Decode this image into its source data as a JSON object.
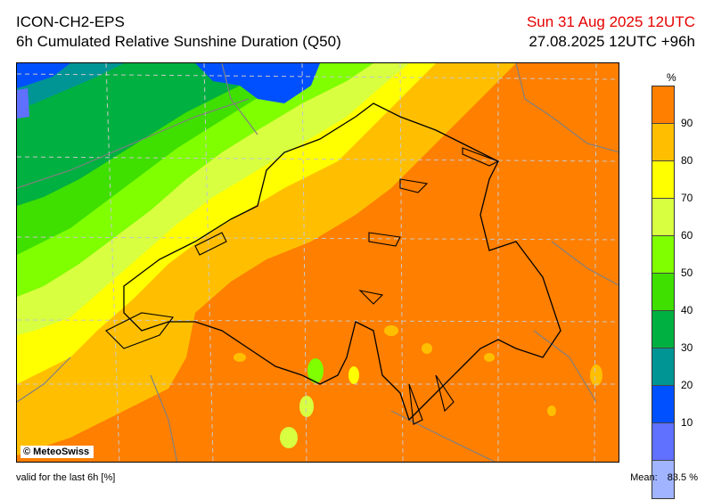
{
  "header": {
    "model": "ICON-CH2-EPS",
    "product": "6h Cumulated Relative Sunshine Duration (Q50)",
    "valid_date": "Sun 31 Aug 2025 12UTC",
    "run_info": "27.08.2025 12UTC +96h"
  },
  "map": {
    "copyright": "© MeteoSwiss",
    "region": "Switzerland",
    "colors": {
      "background_orange": "#ff7f00",
      "border_lines": "#000000",
      "grid_lines": "#c8c8c8",
      "neighbor_borders": "#808080"
    }
  },
  "legend": {
    "unit": "%",
    "classes": [
      {
        "color": "#ff7f00",
        "label": ""
      },
      {
        "color": "#ffbf00",
        "label": "90"
      },
      {
        "color": "#ffff00",
        "label": "80"
      },
      {
        "color": "#d8ff40",
        "label": "70"
      },
      {
        "color": "#7fff00",
        "label": "60"
      },
      {
        "color": "#3fdf00",
        "label": "50"
      },
      {
        "color": "#00b040",
        "label": "40"
      },
      {
        "color": "#009595",
        "label": "30"
      },
      {
        "color": "#0050ff",
        "label": "20"
      },
      {
        "color": "#6070ff",
        "label": "10"
      },
      {
        "color": "#a0b4ff",
        "label": ""
      }
    ]
  },
  "footer": {
    "validity": "valid for the last 6h [%]",
    "mean_label": "Mean:",
    "mean_value": "83.5 %"
  }
}
